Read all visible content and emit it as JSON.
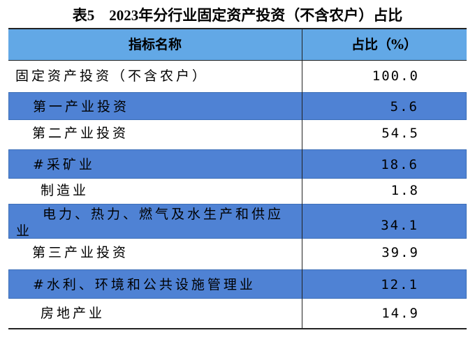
{
  "title": "表5　2023年分行业固定资产投资（不含农户）占比",
  "table": {
    "header": [
      "指标名称",
      "占比（%）"
    ],
    "rows": [
      [
        "固定资产投资（不含农户）",
        "100.0"
      ],
      [
        "第一产业投资",
        "5.6"
      ],
      [
        "第二产业投资",
        "54.5"
      ],
      [
        "#采矿业",
        "18.6"
      ],
      [
        "制造业",
        "1.8"
      ],
      [
        "电力、热力、燃气及水生产和供应业",
        "34.1"
      ],
      [
        "第三产业投资",
        "39.9"
      ],
      [
        "#水利、环境和公共设施管理业",
        "12.1"
      ],
      [
        "房地产业",
        "14.9"
      ]
    ]
  }
}
